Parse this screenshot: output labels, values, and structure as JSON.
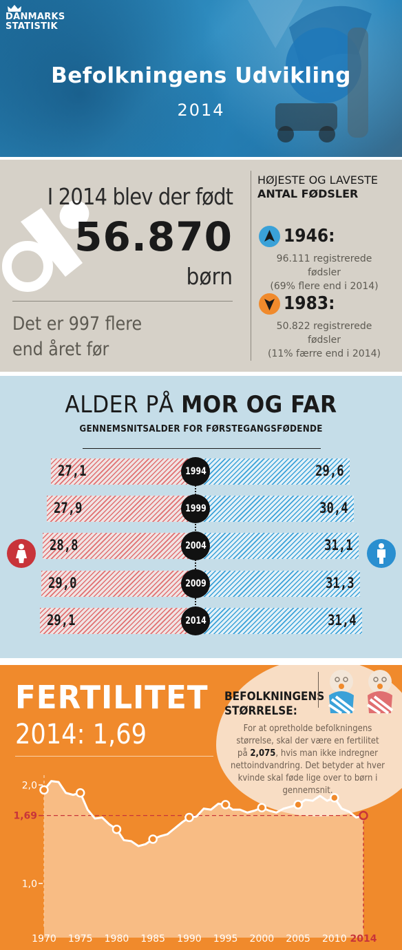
{
  "header": {
    "logo_line1": "DANMARKS",
    "logo_line2": "STATISTIK",
    "title": "Befolkningens Udvikling",
    "year": "2014"
  },
  "births": {
    "line1": "I 2014 blev der født",
    "number": "56.870",
    "unit": "børn",
    "more_line1": "Det er 997 flere",
    "more_line2": "end året før",
    "highlow_title_line1": "HØJESTE OG LAVESTE",
    "highlow_title_line2": "ANTAL FØDSLER",
    "high": {
      "year": "1946:",
      "line1": "96.111 registrerede fødsler",
      "line2": "(69% flere end i 2014)",
      "color": "#3aa1d8",
      "icon": "arrow-up-icon"
    },
    "low": {
      "year": "1983:",
      "line1": "50.822 registrerede fødsler",
      "line2": "(11% færre end i 2014)",
      "color": "#f08a2c",
      "icon": "arrow-down-icon"
    }
  },
  "age": {
    "title_regular": "ALDER PÅ ",
    "title_bold": "MOR OG FAR",
    "subtitle": "GENNEMSNITSALDER FOR FØRSTEGANGSFØDENDE",
    "female_color": "#c8343a",
    "male_color": "#2a8fd0",
    "rows": [
      {
        "year": "1994",
        "mother": "27,1",
        "father": "29,6"
      },
      {
        "year": "1999",
        "mother": "27,9",
        "father": "30,4"
      },
      {
        "year": "2004",
        "mother": "28,8",
        "father": "31,1"
      },
      {
        "year": "2009",
        "mother": "29,0",
        "father": "31,3"
      },
      {
        "year": "2014",
        "mother": "29,1",
        "father": "31,4"
      }
    ]
  },
  "fertility": {
    "title": "FERTILITET",
    "value_text": "2014: 1,69",
    "bubble_title_line1": "BEFOLKNINGENS",
    "bubble_title_line2": "STØRRELSE:",
    "bubble_text_1": "For at opretholde befolkningens størrelse, skal der være en fertilitet på ",
    "bubble_text_bold": "2,075",
    "bubble_text_2": ", hvis man ikke indregner nettoindvandring. Det betyder at hver kvinde skal føde lige over to børn i gennemsnit."
  },
  "chart_data": {
    "type": "area",
    "x": [
      1970,
      1971,
      1972,
      1973,
      1974,
      1975,
      1976,
      1977,
      1978,
      1979,
      1980,
      1981,
      1982,
      1983,
      1984,
      1985,
      1986,
      1987,
      1988,
      1989,
      1990,
      1991,
      1992,
      1993,
      1994,
      1995,
      1996,
      1997,
      1998,
      1999,
      2000,
      2001,
      2002,
      2003,
      2004,
      2005,
      2006,
      2007,
      2008,
      2009,
      2010,
      2011,
      2012,
      2013,
      2014
    ],
    "y": [
      1.95,
      2.04,
      2.03,
      1.92,
      1.9,
      1.92,
      1.75,
      1.66,
      1.67,
      1.6,
      1.55,
      1.44,
      1.43,
      1.38,
      1.4,
      1.45,
      1.48,
      1.5,
      1.56,
      1.62,
      1.67,
      1.68,
      1.76,
      1.75,
      1.81,
      1.8,
      1.75,
      1.75,
      1.72,
      1.74,
      1.77,
      1.74,
      1.72,
      1.76,
      1.78,
      1.8,
      1.85,
      1.84,
      1.89,
      1.84,
      1.87,
      1.76,
      1.73,
      1.67,
      1.69
    ],
    "markers": [
      1970,
      1975,
      1980,
      1985,
      1990,
      1995,
      2000,
      2005,
      2010,
      2014
    ],
    "highlight": {
      "x": 2014,
      "label": "1,69"
    },
    "y_ticks": [
      "2,0",
      "1,69",
      "1,0"
    ],
    "y_tick_values": [
      2.0,
      1.69,
      1.0
    ],
    "x_ticks": [
      "1970",
      "1975",
      "1980",
      "1985",
      "1990",
      "1995",
      "2000",
      "2005",
      "2010",
      "2014"
    ],
    "ylim": [
      0.8,
      2.1
    ],
    "title": "",
    "xlabel": "",
    "ylabel": ""
  }
}
